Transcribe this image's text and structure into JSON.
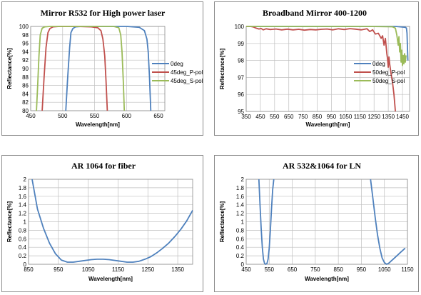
{
  "chart_data": [
    {
      "type": "line",
      "title": "Mirror R532 for High power laser",
      "xlabel": "Wavelength[nm]",
      "ylabel": "Reflectance[%]",
      "xlim": [
        450,
        660
      ],
      "ylim": [
        80,
        100
      ],
      "xticks": [
        "450",
        "500",
        "550",
        "600",
        "650"
      ],
      "xtick_values": [
        450,
        500,
        550,
        600,
        650
      ],
      "yticks": [
        "80",
        "82",
        "84",
        "86",
        "88",
        "90",
        "92",
        "94",
        "96",
        "98",
        "100"
      ],
      "ytick_values": [
        80,
        82,
        84,
        86,
        88,
        90,
        92,
        94,
        96,
        98,
        100
      ],
      "grid": true,
      "legend_position": "right",
      "series": [
        {
          "name": "0deg",
          "color": "#4f81bd",
          "x": [
            505,
            508,
            511,
            513,
            516,
            520,
            530,
            560,
            600,
            620,
            628,
            632,
            634,
            636,
            638
          ],
          "y": [
            80,
            88,
            95,
            98.5,
            99.5,
            99.9,
            100,
            100,
            100,
            99.8,
            99,
            97,
            94,
            88,
            80
          ]
        },
        {
          "name": "45deg_P-pol",
          "color": "#c0504d",
          "x": [
            468,
            471,
            474,
            477,
            480,
            485,
            495,
            520,
            545,
            555,
            560,
            563,
            566,
            568,
            570
          ],
          "y": [
            80,
            88,
            95,
            98.5,
            99.5,
            99.9,
            100,
            100,
            99.9,
            99.7,
            99,
            97,
            93,
            87,
            80
          ]
        },
        {
          "name": "45deg_S-pol",
          "color": "#9bbb59",
          "x": [
            459,
            461,
            463,
            465,
            468,
            472,
            480,
            530,
            580,
            588,
            591,
            593,
            595,
            596.5
          ],
          "y": [
            80,
            86,
            93,
            98,
            99.6,
            99.9,
            100,
            100,
            100,
            99.7,
            98,
            94,
            87,
            80
          ]
        }
      ]
    },
    {
      "type": "line",
      "title": "Broadband Mirror 400-1200",
      "xlabel": "Wavelength[nm]",
      "ylabel": "Reflectance[%]",
      "xlim": [
        350,
        1500
      ],
      "ylim": [
        95,
        100
      ],
      "xticks": [
        "350",
        "450",
        "550",
        "650",
        "750",
        "850",
        "950",
        "1050",
        "1150",
        "1250",
        "1350",
        "1450"
      ],
      "xtick_values": [
        350,
        450,
        550,
        650,
        750,
        850,
        950,
        1050,
        1150,
        1250,
        1350,
        1450
      ],
      "yticks": [
        "95",
        "96",
        "97",
        "98",
        "99",
        "100"
      ],
      "ytick_values": [
        95,
        96,
        97,
        98,
        99,
        100
      ],
      "grid": true,
      "legend_position": "right",
      "series": [
        {
          "name": "0deg",
          "color": "#4f81bd",
          "x": [
            350,
            600,
            900,
            1200,
            1400,
            1470,
            1478,
            1482,
            1485,
            1488
          ],
          "y": [
            100,
            100,
            100,
            100,
            100,
            99.95,
            99.9,
            99.6,
            98.8,
            98
          ]
        },
        {
          "name": "50deg_P-pol",
          "color": "#c0504d",
          "x": [
            350,
            380,
            400,
            420,
            440,
            455,
            470,
            490,
            520,
            560,
            600,
            640,
            680,
            720,
            760,
            800,
            840,
            880,
            920,
            960,
            1000,
            1040,
            1080,
            1120,
            1160,
            1200,
            1220,
            1240,
            1260,
            1280,
            1300,
            1310,
            1320,
            1330,
            1340,
            1345,
            1350,
            1355,
            1360,
            1370,
            1380,
            1390,
            1400
          ],
          "y": [
            100,
            100,
            99.97,
            99.9,
            99.85,
            99.88,
            99.8,
            99.86,
            99.82,
            99.85,
            99.8,
            99.84,
            99.8,
            99.83,
            99.78,
            99.82,
            99.8,
            99.83,
            99.85,
            99.8,
            99.86,
            99.82,
            99.87,
            99.84,
            99.8,
            99.86,
            99.7,
            99.8,
            99.55,
            99.6,
            99.3,
            99.45,
            98.9,
            99.3,
            98.4,
            98.1,
            97.6,
            98.2,
            97.8,
            97.2,
            96.7,
            96.0,
            95.0
          ]
        },
        {
          "name": "50deg_S-pol",
          "color": "#9bbb59",
          "x": [
            350,
            600,
            900,
            1200,
            1380,
            1400,
            1410,
            1420,
            1425,
            1430,
            1435,
            1440,
            1445,
            1450,
            1455,
            1460,
            1465,
            1470,
            1475
          ],
          "y": [
            100,
            100,
            100,
            100,
            99.98,
            99.9,
            99.5,
            98.9,
            99.4,
            98.5,
            99.0,
            97.9,
            98.6,
            97.7,
            98.3,
            97.8,
            98.4,
            97.9,
            98.3
          ]
        }
      ]
    },
    {
      "type": "line",
      "title": "AR 1064 for fiber",
      "xlabel": "Wavelength[nm]",
      "ylabel": "Reflectance[%]",
      "xlim": [
        850,
        1400
      ],
      "ylim": [
        0,
        2
      ],
      "xticks": [
        "850",
        "950",
        "1050",
        "1150",
        "1250",
        "1350"
      ],
      "xtick_values": [
        850,
        950,
        1050,
        1150,
        1250,
        1350
      ],
      "yticks": [
        "0",
        "0.2",
        "0.4",
        "0.6",
        "0.8",
        "1",
        "1.2",
        "1.4",
        "1.6",
        "1.8",
        "2"
      ],
      "ytick_values": [
        0,
        0.2,
        0.4,
        0.6,
        0.8,
        1,
        1.2,
        1.4,
        1.6,
        1.8,
        2
      ],
      "grid": true,
      "series": [
        {
          "color": "#4f81bd",
          "x": [
            862,
            880,
            900,
            920,
            940,
            960,
            980,
            1000,
            1020,
            1040,
            1060,
            1080,
            1100,
            1120,
            1140,
            1160,
            1180,
            1200,
            1220,
            1240,
            1260,
            1280,
            1300,
            1320,
            1340,
            1360,
            1380,
            1400
          ],
          "y": [
            2.0,
            1.3,
            0.85,
            0.5,
            0.25,
            0.1,
            0.05,
            0.05,
            0.07,
            0.09,
            0.11,
            0.12,
            0.12,
            0.11,
            0.09,
            0.07,
            0.05,
            0.05,
            0.07,
            0.12,
            0.18,
            0.27,
            0.38,
            0.5,
            0.65,
            0.82,
            1.02,
            1.27
          ]
        }
      ]
    },
    {
      "type": "line",
      "title": "AR 532&1064 for LN",
      "xlabel": "Wavelength[nm]",
      "ylabel": "Reflectance[%]",
      "xlim": [
        450,
        1150
      ],
      "ylim": [
        0,
        2
      ],
      "xticks": [
        "450",
        "550",
        "650",
        "750",
        "850",
        "950",
        "1050",
        "1150"
      ],
      "xtick_values": [
        450,
        550,
        650,
        750,
        850,
        950,
        1050,
        1150
      ],
      "yticks": [
        "0",
        "0.2",
        "0.4",
        "0.6",
        "0.8",
        "1",
        "1.2",
        "1.4",
        "1.6",
        "1.8",
        "2"
      ],
      "ytick_values": [
        0,
        0.2,
        0.4,
        0.6,
        0.8,
        1,
        1.2,
        1.4,
        1.6,
        1.8,
        2
      ],
      "grid": true,
      "series": [
        {
          "color": "#4f81bd",
          "x": [
            505,
            510,
            515,
            520,
            525,
            530,
            535,
            540,
            545,
            550,
            555,
            560,
            565,
            570
          ],
          "y": [
            2.0,
            1.4,
            0.85,
            0.4,
            0.12,
            0.02,
            0.0,
            0.02,
            0.12,
            0.38,
            0.8,
            1.3,
            1.75,
            2.0
          ]
        },
        {
          "color": "#4f81bd",
          "x": [
            990,
            1000,
            1010,
            1020,
            1030,
            1040,
            1050,
            1060,
            1070,
            1080,
            1090,
            1100,
            1110,
            1120,
            1130,
            1140
          ],
          "y": [
            2.0,
            1.55,
            1.1,
            0.7,
            0.38,
            0.15,
            0.04,
            0.0,
            0.03,
            0.08,
            0.13,
            0.18,
            0.23,
            0.28,
            0.33,
            0.38
          ]
        }
      ]
    }
  ]
}
